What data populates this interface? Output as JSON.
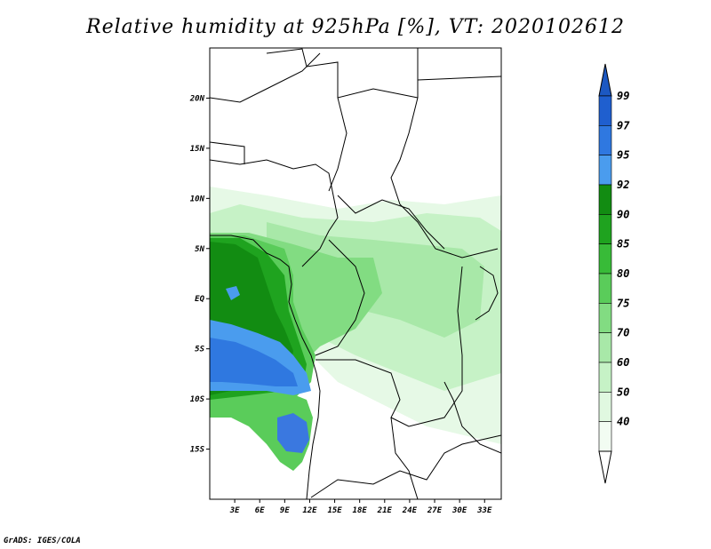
{
  "title": "Relative humidity at 925hPa [%], VT: 2020102612",
  "footer": "GrADS: IGES/COLA",
  "map": {
    "lat_labels": [
      {
        "value": 20,
        "label": "20N"
      },
      {
        "value": 15,
        "label": "15N"
      },
      {
        "value": 10,
        "label": "10N"
      },
      {
        "value": 5,
        "label": "5N"
      },
      {
        "value": 0,
        "label": "EQ"
      },
      {
        "value": -5,
        "label": "5S"
      },
      {
        "value": -10,
        "label": "10S"
      },
      {
        "value": -15,
        "label": "15S"
      }
    ],
    "lon_labels": [
      {
        "value": 3,
        "label": "3E"
      },
      {
        "value": 6,
        "label": "6E"
      },
      {
        "value": 9,
        "label": "9E"
      },
      {
        "value": 12,
        "label": "12E"
      },
      {
        "value": 15,
        "label": "15E"
      },
      {
        "value": 18,
        "label": "18E"
      },
      {
        "value": 21,
        "label": "21E"
      },
      {
        "value": 24,
        "label": "24E"
      },
      {
        "value": 27,
        "label": "27E"
      },
      {
        "value": 30,
        "label": "30E"
      },
      {
        "value": 33,
        "label": "33E"
      }
    ],
    "lon_range": [
      0,
      35
    ],
    "lat_range": [
      -20,
      25
    ]
  },
  "colorbar": {
    "levels": [
      {
        "label": "99",
        "color": "#1f5fcf"
      },
      {
        "label": "97",
        "color": "#2f78e0"
      },
      {
        "label": "95",
        "color": "#4a9cee"
      },
      {
        "label": "92",
        "color": "#128c12"
      },
      {
        "label": "90",
        "color": "#1fa31f"
      },
      {
        "label": "85",
        "color": "#38bb38"
      },
      {
        "label": "80",
        "color": "#5acc5a"
      },
      {
        "label": "75",
        "color": "#82dc82"
      },
      {
        "label": "70",
        "color": "#a8e8a8"
      },
      {
        "label": "60",
        "color": "#c6f2c6"
      },
      {
        "label": "50",
        "color": "#e0f8e0"
      },
      {
        "label": "40",
        "color": "#f2fcf2"
      }
    ],
    "top_color": "#1c58c2",
    "bottom_color": "#ffffff"
  }
}
